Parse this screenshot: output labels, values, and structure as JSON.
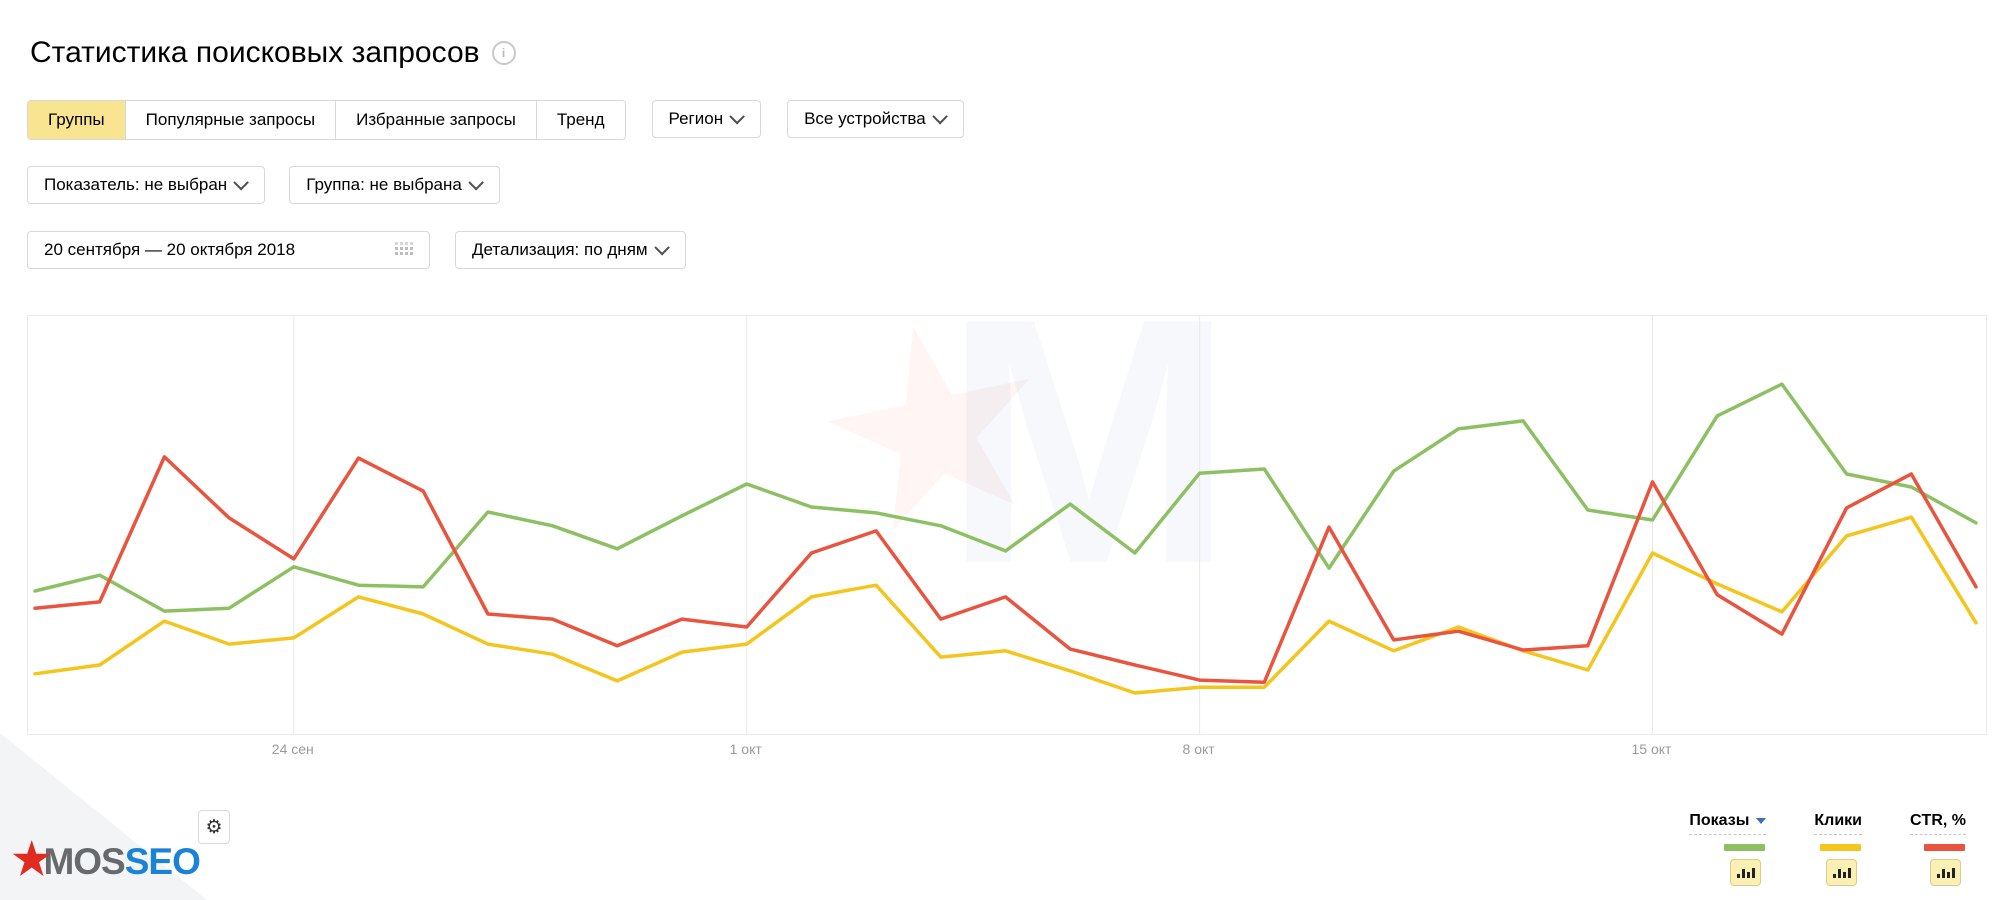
{
  "header": {
    "title": "Статистика поисковых запросов",
    "info_icon": "i"
  },
  "tabs": [
    {
      "key": "groups",
      "label": "Группы",
      "active": true
    },
    {
      "key": "popular-queries",
      "label": "Популярные запросы",
      "active": false
    },
    {
      "key": "favorite-queries",
      "label": "Избранные запросы",
      "active": false
    },
    {
      "key": "trend",
      "label": "Тренд",
      "active": false
    }
  ],
  "filters": {
    "region": "Регион",
    "devices": "Все устройства",
    "metric": "Показатель: не выбран",
    "group": "Группа: не выбрана",
    "date_range": "20 сентября — 20 октября 2018",
    "detail": "Детализация: по дням"
  },
  "icons": {
    "gear": "⚙",
    "logo_star": "★"
  },
  "chart_data": {
    "type": "line",
    "x_start": "20 сентября 2018",
    "x_end": "20 октября 2018",
    "points_per_series": 31,
    "x_unit": "день",
    "grid": "vertical weekly gridlines only, no y axis labels",
    "ylim": [
      0,
      100
    ],
    "y_note": "relative height percent of plot area (chart shows no numeric y axis)",
    "ticks": [
      {
        "label": "24 сен",
        "day": 4
      },
      {
        "label": "1 окт",
        "day": 11
      },
      {
        "label": "8 окт",
        "day": 18
      },
      {
        "label": "15 окт",
        "day": 25
      }
    ],
    "series": [
      {
        "name": "Показы",
        "color": "#8dc063",
        "values": [
          34.2,
          38.0,
          29.4,
          30.1,
          40.0,
          35.6,
          35.2,
          53.1,
          49.8,
          44.3,
          52.2,
          59.8,
          54.3,
          52.9,
          49.8,
          43.8,
          55.0,
          43.3,
          62.4,
          63.4,
          39.7,
          62.9,
          73.0,
          74.9,
          53.6,
          51.2,
          76.1,
          83.7,
          62.2,
          59.1,
          50.5
        ]
      },
      {
        "name": "Клики",
        "color": "#f3c51d",
        "values": [
          14.4,
          16.5,
          27.0,
          21.5,
          23.0,
          32.8,
          28.7,
          21.5,
          19.1,
          12.7,
          19.6,
          21.5,
          32.8,
          35.6,
          18.4,
          19.9,
          15.1,
          9.8,
          11.2,
          11.2,
          27.0,
          19.9,
          25.6,
          19.9,
          15.3,
          43.3,
          35.9,
          29.2,
          47.4,
          51.9,
          26.6
        ]
      },
      {
        "name": "CTR, %",
        "color": "#e9543f",
        "values": [
          30.1,
          31.6,
          66.3,
          51.7,
          41.9,
          66.0,
          58.1,
          28.7,
          27.5,
          21.1,
          27.5,
          25.6,
          43.3,
          48.6,
          27.5,
          32.8,
          20.3,
          16.5,
          12.9,
          12.4,
          49.5,
          22.5,
          24.6,
          20.1,
          21.1,
          60.3,
          33.3,
          23.9,
          54.1,
          62.2,
          35.2
        ]
      }
    ]
  },
  "legend": [
    {
      "key": "impressions",
      "label": "Показы",
      "color": "#8dc063",
      "dropdown": true
    },
    {
      "key": "clicks",
      "label": "Клики",
      "color": "#f3c51d",
      "dropdown": false
    },
    {
      "key": "ctr",
      "label": "CTR, %",
      "color": "#e9543f",
      "dropdown": false
    }
  ],
  "watermark": {
    "letter": "M"
  },
  "logo": {
    "mos": "MOS",
    "seo": "SEO"
  }
}
